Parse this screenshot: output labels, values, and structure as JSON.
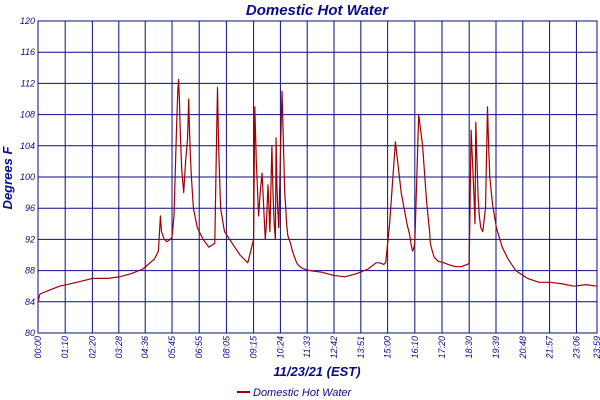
{
  "chart_data": {
    "type": "line",
    "title": "Domestic Hot Water",
    "xlabel": "11/23/21 (EST)",
    "ylabel": "Degrees F",
    "ylim": [
      80,
      120
    ],
    "yticks": [
      80,
      84,
      88,
      92,
      96,
      100,
      104,
      108,
      112,
      116,
      120
    ],
    "ytick_labels": [
      "80",
      "84",
      "88",
      "92",
      "96",
      "100",
      "104",
      "108",
      "112",
      "116",
      "120"
    ],
    "xlim": [
      0,
      1439
    ],
    "xticks": [
      0,
      70,
      140,
      208,
      276,
      345,
      415,
      485,
      555,
      624,
      693,
      762,
      831,
      900,
      970,
      1040,
      1110,
      1179,
      1248,
      1317,
      1386,
      1439
    ],
    "xtick_labels": [
      "00:00",
      "01:10",
      "02:20",
      "03:28",
      "04:36",
      "05:45",
      "06:55",
      "08:05",
      "09:15",
      "10:24",
      "11:33",
      "12:42",
      "13:51",
      "15:00",
      "16:10",
      "17:20",
      "18:30",
      "19:39",
      "20:48",
      "21:57",
      "23:06",
      "23:59"
    ],
    "grid": true,
    "legend": "bottom",
    "color": "#a00000",
    "series": [
      {
        "name": "Domestic Hot Water",
        "x": [
          0,
          5,
          30,
          55,
          75,
          100,
          140,
          180,
          210,
          240,
          270,
          300,
          310,
          315,
          318,
          325,
          332,
          340,
          345,
          350,
          357,
          360,
          362,
          364,
          366,
          370,
          375,
          380,
          385,
          388,
          390,
          392,
          395,
          400,
          410,
          425,
          440,
          455,
          460,
          462,
          465,
          470,
          480,
          500,
          520,
          540,
          555,
          558,
          562,
          568,
          572,
          577,
          582,
          585,
          588,
          592,
          597,
          602,
          605,
          608,
          611,
          613,
          615,
          617,
          620,
          625,
          628,
          632,
          635,
          638,
          640,
          643,
          650,
          655,
          662,
          666,
          670,
          680,
          700,
          730,
          760,
          790,
          820,
          850,
          870,
          880,
          890,
          895,
          905,
          920,
          935,
          950,
          957,
          960,
          962,
          964,
          966,
          968,
          970,
          980,
          990,
          1000,
          1005,
          1008,
          1010,
          1015,
          1020,
          1030,
          1045,
          1060,
          1075,
          1090,
          1100,
          1106,
          1110,
          1115,
          1123,
          1125,
          1127,
          1130,
          1133,
          1136,
          1140,
          1145,
          1152,
          1157,
          1160,
          1163,
          1170,
          1180,
          1195,
          1210,
          1230,
          1260,
          1290,
          1320,
          1350,
          1380,
          1410,
          1439
        ],
        "y": [
          84,
          85,
          85.5,
          86,
          86.2,
          86.5,
          87,
          87,
          87.2,
          87.6,
          88.2,
          89.5,
          90.5,
          95,
          93,
          92,
          91.7,
          92,
          92.3,
          95,
          107,
          111,
          112.5,
          110,
          106,
          101,
          98,
          102,
          105,
          110,
          106,
          103,
          100,
          96,
          93.5,
          92,
          91,
          91.5,
          106,
          111.5,
          104,
          96,
          93,
          91.5,
          90,
          89,
          92,
          109,
          102,
          95,
          98,
          100.5,
          95,
          92,
          94,
          99,
          93,
          104,
          98,
          94,
          92,
          105,
          99,
          96,
          93.5,
          105,
          111,
          104,
          98,
          96,
          94,
          92.5,
          91.5,
          90.5,
          89.5,
          89,
          88.7,
          88.3,
          88,
          87.8,
          87.4,
          87.2,
          87.6,
          88.2,
          89,
          89,
          88.8,
          89,
          94,
          104.5,
          98,
          94,
          92.5,
          91.5,
          91,
          90.5,
          90.7,
          91,
          91.5,
          108,
          104,
          97,
          94.5,
          93,
          91.5,
          90.5,
          89.7,
          89.2,
          89,
          88.7,
          88.5,
          88.5,
          88.7,
          88.8,
          89,
          106,
          97,
          94,
          107,
          102,
          97.5,
          95,
          93.5,
          93,
          96,
          109,
          104,
          100,
          96.5,
          93.5,
          91,
          89.5,
          88,
          87,
          86.5,
          86.5,
          86.3,
          86,
          86.2,
          86
        ]
      }
    ]
  }
}
